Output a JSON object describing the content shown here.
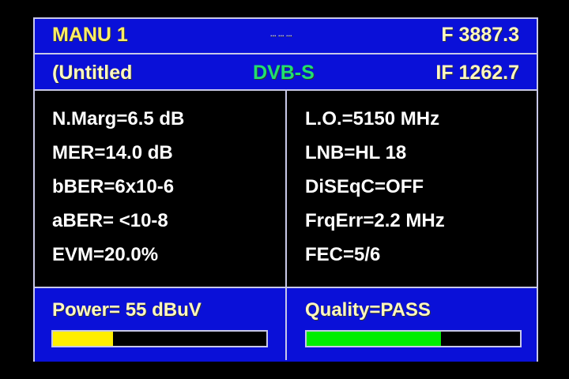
{
  "header": {
    "mode": "MANU 1",
    "center_indicator": "... ... ...",
    "frequency": "F 3887.3",
    "name": "(Untitled",
    "standard": "DVB-S",
    "if_freq": "IF 1262.7"
  },
  "left": [
    "N.Marg=6.5 dB",
    "MER=14.0 dB",
    "bBER=6x10-6",
    "aBER= <10-8",
    "EVM=20.0%"
  ],
  "right": [
    "L.O.=5150 MHz",
    "LNB=HL 18",
    "DiSEqC=OFF",
    "FrqErr=2.2 MHz",
    "FEC=5/6"
  ],
  "power": {
    "label": "Power= 55 dBuV",
    "level": 0.28,
    "color": "#ffee00"
  },
  "quality": {
    "label": "Quality=PASS",
    "level": 0.63,
    "color": "#00ee00"
  },
  "colors": {
    "panel": "#0a10d8",
    "standard": "#20e070"
  }
}
